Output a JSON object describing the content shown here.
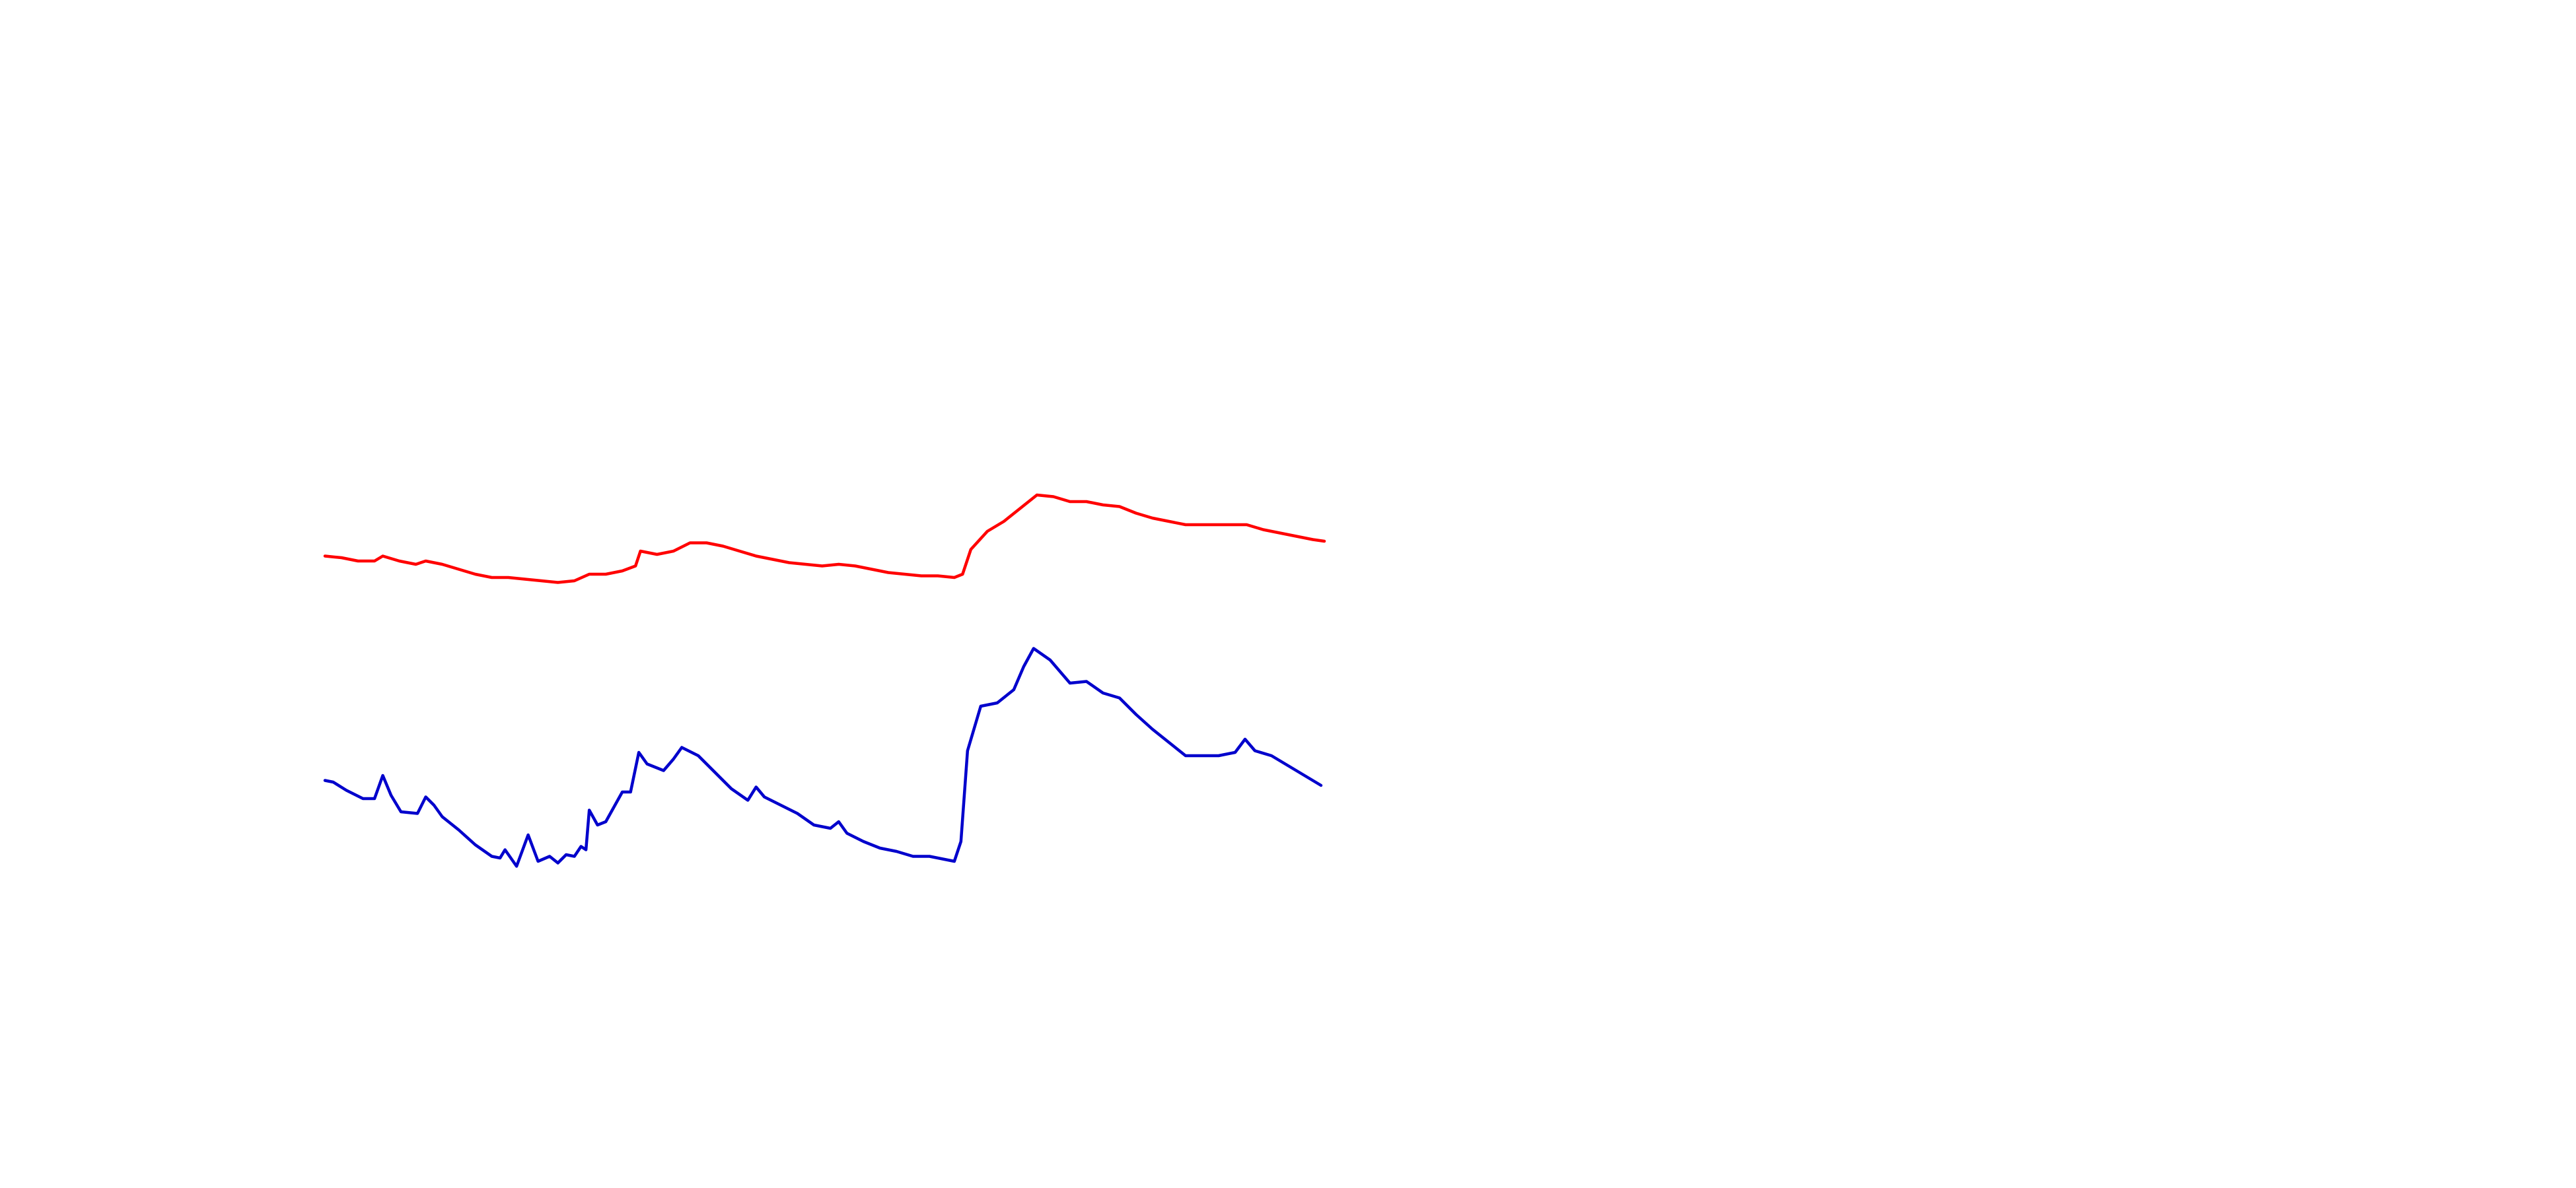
{
  "chart_data": {
    "type": "line",
    "xlim": [
      0,
      605
    ],
    "ylim": [
      0,
      240
    ],
    "series": [
      {
        "color": "#ff0000",
        "x": [
          0,
          10,
          20,
          30,
          35,
          45,
          55,
          61,
          71,
          81,
          91,
          101,
          111,
          121,
          131,
          141,
          151,
          160,
          170,
          180,
          188,
          191,
          201,
          211,
          221,
          231,
          241,
          251,
          261,
          271,
          281,
          291,
          301,
          311,
          321,
          331,
          341,
          351,
          361,
          371,
          381,
          386,
          391,
          401,
          411,
          421,
          431,
          441,
          451,
          461,
          471,
          481,
          491,
          501,
          511,
          521,
          531,
          541,
          551,
          558,
          568,
          578,
          588,
          598,
          605
        ],
        "values": [
          193,
          192,
          190,
          190,
          193,
          190,
          188,
          190,
          188,
          185,
          182,
          180,
          180,
          179,
          178,
          177,
          178,
          182,
          182,
          184,
          187,
          196,
          194,
          196,
          201,
          201,
          199,
          196,
          193,
          191,
          189,
          188,
          187,
          188,
          187,
          185,
          183,
          182,
          181,
          181,
          180,
          182,
          197,
          208,
          214,
          222,
          230,
          229,
          226,
          226,
          224,
          223,
          219,
          216,
          214,
          212,
          212,
          212,
          212,
          212,
          209,
          207,
          205,
          203,
          202
        ]
      },
      {
        "color": "#0000cc",
        "x": [
          0,
          5,
          13,
          23,
          30,
          35,
          40,
          46,
          56,
          61,
          66,
          71,
          81,
          91,
          101,
          106,
          109,
          116,
          123,
          129,
          136,
          141,
          146,
          151,
          155,
          158,
          160,
          165,
          170,
          175,
          180,
          185,
          190,
          195,
          205,
          211,
          216,
          226,
          236,
          246,
          256,
          261,
          266,
          276,
          286,
          296,
          306,
          311,
          316,
          326,
          336,
          346,
          356,
          366,
          376,
          381,
          385,
          389,
          397,
          407,
          417,
          423,
          429,
          439,
          451,
          461,
          471,
          481,
          491,
          501,
          511,
          521,
          531,
          541,
          551,
          557,
          563,
          573,
          583,
          593,
          603
        ],
        "values": [
          57,
          56,
          51,
          46,
          46,
          60,
          48,
          38,
          37,
          47,
          42,
          35,
          27,
          18,
          11,
          10,
          15,
          5,
          24,
          8,
          11,
          7,
          12,
          11,
          17,
          15,
          39,
          30,
          32,
          41,
          50,
          50,
          74,
          67,
          63,
          70,
          77,
          72,
          62,
          52,
          45,
          53,
          47,
          42,
          37,
          30,
          28,
          32,
          25,
          20,
          16,
          14,
          11,
          11,
          9,
          8,
          20,
          75,
          102,
          104,
          112,
          126,
          137,
          130,
          116,
          117,
          110,
          107,
          97,
          88,
          80,
          72,
          72,
          72,
          74,
          82,
          75,
          72,
          66,
          60,
          54
        ]
      }
    ]
  }
}
